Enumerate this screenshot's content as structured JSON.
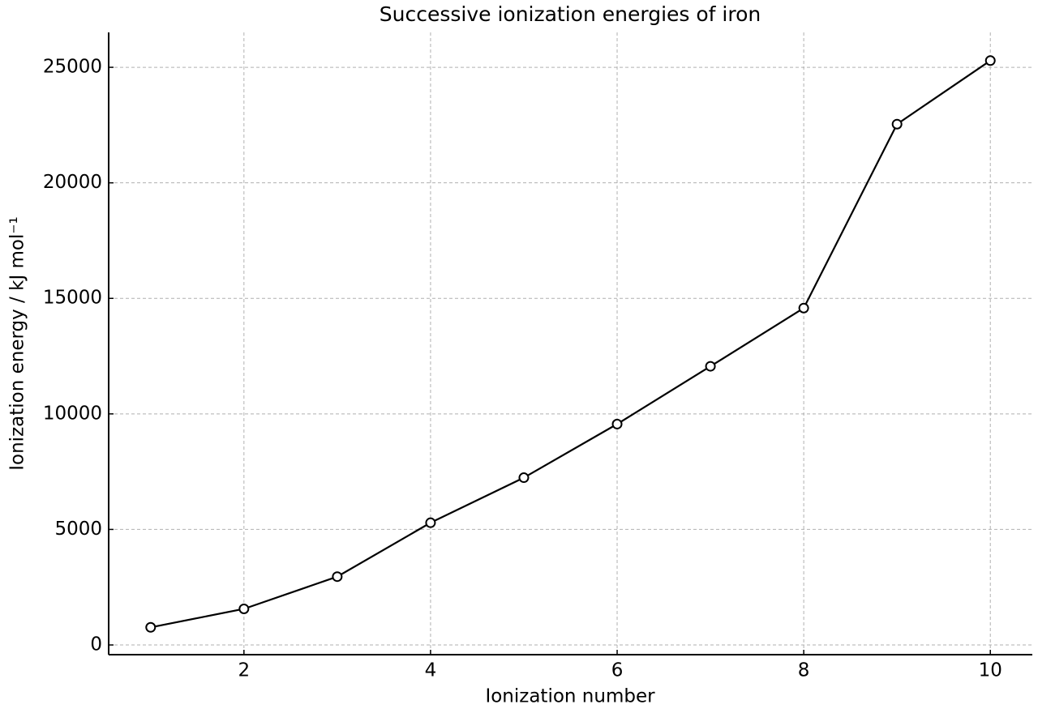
{
  "chart_data": {
    "type": "line",
    "title": "Successive ionization energies of iron",
    "x_label": "Ionization number",
    "y_label": "Ionization energy / kJ mol⁻¹",
    "x": [
      1,
      2,
      3,
      4,
      5,
      6,
      7,
      8,
      9,
      10
    ],
    "series": [
      {
        "color": "#000000",
        "values": [
          762.5,
          1561.9,
          2957,
          5290,
          7240,
          9560,
          12060,
          14580,
          22540,
          25290
        ]
      }
    ],
    "xlim": [
      0.55,
      10.45
    ],
    "ylim": [
      -420,
      26510
    ],
    "xticks": [
      2,
      4,
      6,
      8,
      10
    ],
    "yticks": [
      0,
      5000,
      10000,
      15000,
      20000,
      25000
    ],
    "grid": true
  }
}
